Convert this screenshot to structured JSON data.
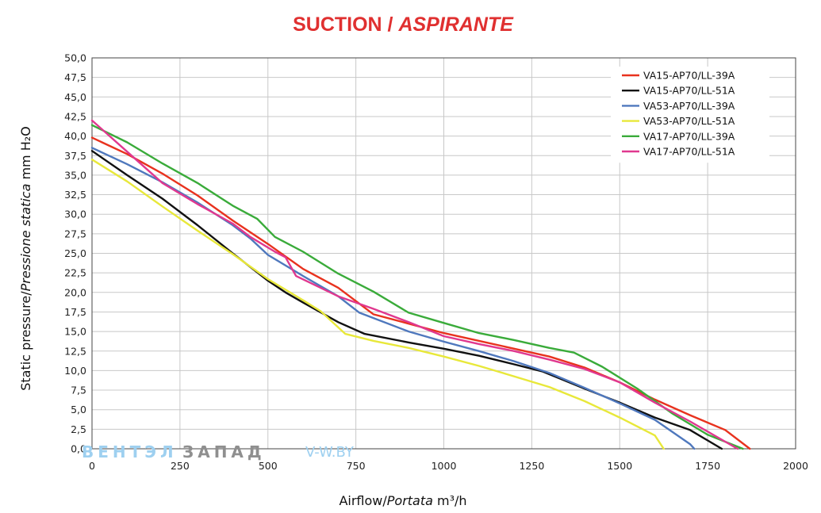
{
  "chart_data": {
    "type": "line",
    "title": "SUCTION",
    "title_italic": "ASPIRANTE",
    "title_separator": " / ",
    "title_color": "#e03030",
    "xlabel": "Airflow",
    "xlabel_italic": "Portata",
    "xlabel_unit": "m³/h",
    "ylabel": "Static pressure",
    "ylabel_italic": "Pressione statica",
    "ylabel_unit": "mm H₂O",
    "xlim": [
      0,
      2000
    ],
    "ylim": [
      0,
      50
    ],
    "xticks": [
      0,
      250,
      500,
      750,
      1000,
      1250,
      1500,
      1750,
      2000
    ],
    "yticks": [
      0,
      2.5,
      5,
      7.5,
      10,
      12.5,
      15,
      17.5,
      20,
      22.5,
      25,
      27.5,
      30,
      32.5,
      35,
      37.5,
      40,
      42.5,
      45,
      47.5,
      50
    ],
    "xtick_labels": [
      "0",
      "250",
      "500",
      "750",
      "1000",
      "1250",
      "1500",
      "1750",
      "2000"
    ],
    "ytick_labels": [
      "0,0",
      "2,5",
      "5,0",
      "7,5",
      "10,0",
      "12,5",
      "15,0",
      "17,5",
      "20,0",
      "22,5",
      "25,0",
      "27,5",
      "30,0",
      "32,5",
      "35,0",
      "37,5",
      "40,0",
      "42,5",
      "45,0",
      "47,5",
      "50,0"
    ],
    "grid": true,
    "legend_position": "top-right",
    "series": [
      {
        "name": "VA15-AP70/LL-39A",
        "color": "#e8321e",
        "x": [
          0,
          100,
          200,
          300,
          400,
          500,
          600,
          700,
          800,
          900,
          1000,
          1100,
          1200,
          1300,
          1400,
          1500,
          1600,
          1700,
          1800,
          1870
        ],
        "y": [
          39.8,
          37.7,
          35.2,
          32.4,
          29.2,
          26.2,
          23.0,
          20.6,
          17.2,
          16.0,
          14.8,
          13.8,
          12.8,
          11.8,
          10.4,
          8.5,
          6.3,
          4.3,
          2.4,
          0.0
        ]
      },
      {
        "name": "VA15-AP70/LL-51A",
        "color": "#111111",
        "x": [
          0,
          100,
          200,
          300,
          400,
          500,
          550,
          600,
          700,
          775,
          900,
          1000,
          1100,
          1200,
          1280,
          1400,
          1500,
          1600,
          1700,
          1790
        ],
        "y": [
          38.1,
          35.0,
          32.0,
          28.6,
          25.0,
          21.5,
          20.0,
          18.7,
          16.2,
          14.7,
          13.6,
          12.8,
          11.9,
          10.8,
          9.9,
          7.7,
          5.9,
          4.0,
          2.4,
          0.0
        ]
      },
      {
        "name": "VA53-AP70/LL-39A",
        "color": "#4f78bd",
        "x": [
          0,
          100,
          200,
          300,
          400,
          450,
          500,
          600,
          700,
          760,
          900,
          1000,
          1100,
          1200,
          1300,
          1400,
          1500,
          1600,
          1700,
          1712
        ],
        "y": [
          38.5,
          36.4,
          34.1,
          31.5,
          28.6,
          26.9,
          24.8,
          22.1,
          19.5,
          17.4,
          15.0,
          13.7,
          12.5,
          11.2,
          9.7,
          7.8,
          5.8,
          3.7,
          0.6,
          0.0
        ]
      },
      {
        "name": "VA53-AP70/LL-51A",
        "color": "#e8e83a",
        "x": [
          0,
          100,
          200,
          300,
          400,
          500,
          600,
          650,
          720,
          800,
          900,
          1000,
          1100,
          1160,
          1300,
          1400,
          1500,
          1600,
          1625
        ],
        "y": [
          37.0,
          34.2,
          31.0,
          27.9,
          24.9,
          21.7,
          19.0,
          17.6,
          14.7,
          13.8,
          12.9,
          11.8,
          10.6,
          9.8,
          7.9,
          6.1,
          4.0,
          1.7,
          0.0
        ]
      },
      {
        "name": "VA17-AP70/LL-39A",
        "color": "#3aab3a",
        "x": [
          0,
          100,
          200,
          300,
          400,
          470,
          520,
          600,
          700,
          800,
          900,
          1000,
          1100,
          1200,
          1300,
          1370,
          1450,
          1550,
          1650,
          1750,
          1850
        ],
        "y": [
          41.4,
          39.2,
          36.5,
          34.0,
          31.1,
          29.4,
          27.1,
          25.2,
          22.4,
          20.1,
          17.4,
          16.1,
          14.8,
          13.9,
          12.9,
          12.3,
          10.5,
          7.7,
          4.5,
          1.8,
          0.0
        ]
      },
      {
        "name": "VA17-AP70/LL-51A",
        "color": "#e0388f",
        "x": [
          0,
          100,
          200,
          300,
          400,
          450,
          520,
          550,
          580,
          700,
          800,
          900,
          1000,
          1100,
          1200,
          1300,
          1400,
          1500,
          1600,
          1700,
          1835
        ],
        "y": [
          42.0,
          38.0,
          34.0,
          31.3,
          28.8,
          27.1,
          25.2,
          24.5,
          22.1,
          19.5,
          17.9,
          16.2,
          14.4,
          13.4,
          12.5,
          11.4,
          10.2,
          8.5,
          5.9,
          3.5,
          0.0
        ]
      }
    ]
  },
  "watermark": {
    "brand_left": "ВЕНТЭЛ",
    "brand_right": "ЗАПАД",
    "site": "V-W.BY",
    "color_left": "#9ed0f0",
    "color_right": "#8f8f8f",
    "color_site": "#9ed0f0"
  }
}
